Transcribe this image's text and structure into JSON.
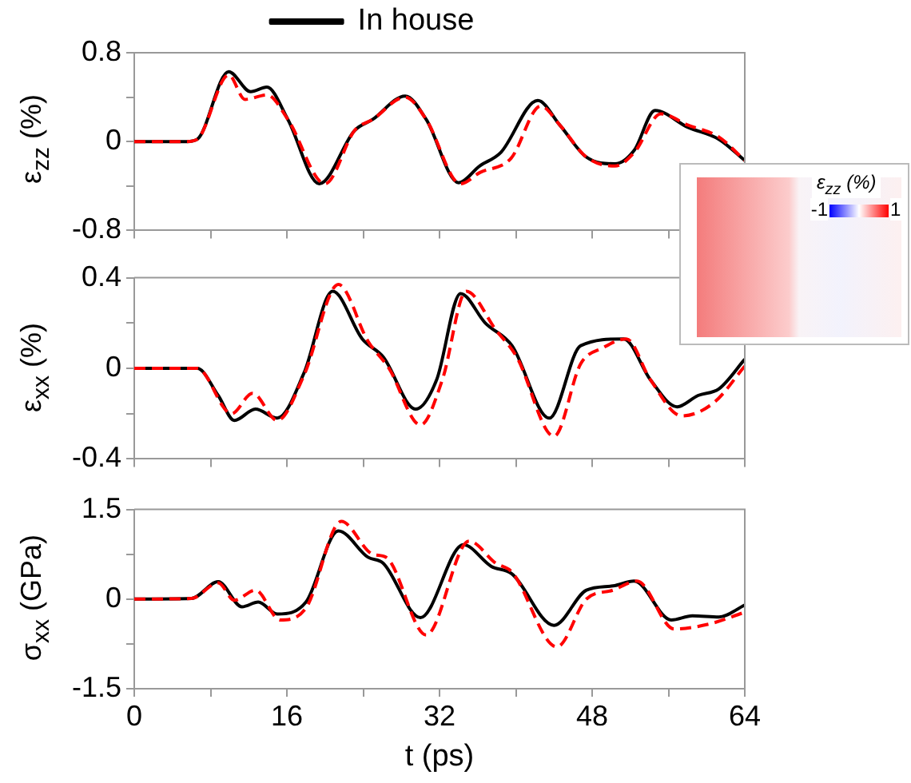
{
  "chart_data": [
    {
      "type": "line",
      "ylabel": "ε$_{zz}$ (%)",
      "xlim": [
        0,
        64
      ],
      "xticks": [
        0,
        {
          "value": 8,
          "label": null
        },
        16,
        {
          "value": 24,
          "label": null
        },
        32,
        {
          "value": 40,
          "label": null
        },
        48,
        {
          "value": 56,
          "label": null
        },
        64
      ],
      "ylim": [
        -0.8,
        0.8
      ],
      "yticks": [
        -0.8,
        {
          "value": -0.4,
          "label": null
        },
        0,
        {
          "value": 0.4,
          "label": null
        },
        0.8
      ],
      "tick_labels": "y",
      "legend": "top",
      "line_style": "solid",
      "series": [
        {
          "color": "#ff0000",
          "line_style": "dashed",
          "x": [
            0,
            5.5,
            6.6,
            9.9,
            11.6,
            13.9,
            16.1,
            20,
            23.1,
            25,
            28.4,
            30.6,
            34.2,
            36.2,
            39.5,
            42.6,
            44.6,
            47.4,
            50.4,
            52.4,
            55.2,
            58,
            61.3,
            64
          ],
          "values": [
            0,
            0,
            0.02,
            0.6,
            0.38,
            0.42,
            0.2,
            -0.38,
            0.1,
            0.2,
            0.4,
            0.2,
            -0.38,
            -0.28,
            -0.15,
            0.32,
            0.15,
            -0.14,
            -0.22,
            -0.1,
            0.25,
            0.15,
            0.04,
            -0.17
          ]
        },
        {
          "name": "In house",
          "color": "#000000",
          "x": [
            0,
            5.5,
            6.6,
            9.9,
            12.2,
            13.9,
            16.1,
            19.4,
            23.1,
            25,
            28.4,
            30.6,
            34,
            36.2,
            38.4,
            42.3,
            44.6,
            47.4,
            50.4,
            52.4,
            54.6,
            58,
            61.3,
            64
          ],
          "values": [
            0,
            0,
            0.02,
            0.63,
            0.45,
            0.49,
            0.2,
            -0.38,
            0.1,
            0.2,
            0.41,
            0.2,
            -0.37,
            -0.22,
            -0.1,
            0.37,
            0.15,
            -0.14,
            -0.2,
            -0.08,
            0.28,
            0.13,
            0.02,
            -0.17
          ]
        }
      ]
    },
    {
      "type": "line",
      "ylabel": "ε$_{xx}$ (%)",
      "xlim": [
        0,
        64
      ],
      "xticks": [
        0,
        {
          "value": 8,
          "label": null
        },
        16,
        {
          "value": 24,
          "label": null
        },
        32,
        {
          "value": 40,
          "label": null
        },
        48,
        {
          "value": 56,
          "label": null
        },
        64
      ],
      "ylim": [
        -0.4,
        0.4
      ],
      "yticks": [
        -0.4,
        {
          "value": -0.2,
          "label": null
        },
        0,
        {
          "value": 0.2,
          "label": null
        },
        0.4
      ],
      "tick_labels": "y",
      "line_style": "solid",
      "series": [
        {
          "color": "#ff0000",
          "line_style": "dashed",
          "x": [
            0,
            6.6,
            10.2,
            12.4,
            15,
            17.8,
            21.4,
            24.5,
            26.7,
            30,
            32.3,
            34.8,
            37.9,
            40.1,
            44,
            46.8,
            49.1,
            51.6,
            54.1,
            57.4,
            60.8,
            64
          ],
          "values": [
            0,
            0,
            -0.2,
            -0.11,
            -0.23,
            -0.03,
            0.37,
            0.12,
            0,
            -0.25,
            -0.05,
            0.34,
            0.17,
            0.05,
            -0.3,
            0.02,
            0.09,
            0.13,
            -0.05,
            -0.21,
            -0.15,
            0.01
          ]
        },
        {
          "color": "#000000",
          "x": [
            0,
            6.6,
            8.8,
            10.5,
            12.7,
            15,
            17.8,
            20.8,
            23.9,
            26.1,
            29.5,
            31.7,
            34.2,
            36.8,
            39.6,
            43.5,
            46.8,
            51.3,
            54.1,
            56.9,
            59.1,
            61.3,
            64
          ],
          "values": [
            0,
            0,
            -0.12,
            -0.23,
            -0.18,
            -0.22,
            -0.02,
            0.34,
            0.13,
            0.05,
            -0.18,
            -0.05,
            0.33,
            0.2,
            0.1,
            -0.22,
            0.1,
            0.13,
            -0.05,
            -0.17,
            -0.12,
            -0.09,
            0.04
          ]
        }
      ]
    },
    {
      "type": "line",
      "ylabel": "σ$_{xx}$ (GPa)",
      "xlabel": "t (ps)",
      "xlim": [
        0,
        64
      ],
      "xticks": [
        0,
        {
          "value": 8,
          "label": null
        },
        16,
        {
          "value": 24,
          "label": null
        },
        32,
        {
          "value": 40,
          "label": null
        },
        48,
        {
          "value": 56,
          "label": null
        },
        64
      ],
      "ylim": [
        -1.5,
        1.5
      ],
      "yticks": [
        -1.5,
        {
          "value": -0.75,
          "label": null
        },
        0,
        {
          "value": 0.75,
          "label": null
        },
        1.5
      ],
      "line_style": "solid",
      "series": [
        {
          "color": "#ff0000",
          "line_style": "dashed",
          "x": [
            0,
            6,
            8.8,
            10.5,
            12.7,
            15.3,
            18,
            21.7,
            25,
            26.4,
            30.6,
            35.1,
            37.9,
            39.6,
            44.3,
            47.4,
            50.2,
            52.7,
            56.6,
            60.2,
            64
          ],
          "values": [
            0,
            0.01,
            0.27,
            -0.02,
            0.15,
            -0.35,
            -0.15,
            1.3,
            0.75,
            0.7,
            -0.6,
            0.97,
            0.6,
            0.45,
            -0.8,
            0,
            0.15,
            0.3,
            -0.5,
            -0.42,
            -0.22
          ]
        },
        {
          "color": "#000000",
          "x": [
            0,
            6,
            8.8,
            11.3,
            13,
            15,
            18,
            21.4,
            24.5,
            26.1,
            30,
            34.5,
            37.4,
            39.6,
            44,
            47.4,
            50.2,
            52.4,
            56.3,
            58.5,
            61.3,
            64
          ],
          "values": [
            0,
            0.01,
            0.29,
            -0.13,
            -0.05,
            -0.25,
            -0.05,
            1.14,
            0.7,
            0.6,
            -0.31,
            0.91,
            0.55,
            0.42,
            -0.44,
            0.15,
            0.22,
            0.3,
            -0.35,
            -0.28,
            -0.3,
            -0.1
          ]
        }
      ]
    },
    {
      "type": "other",
      "clabel": "ε$_{zz}$ (%)",
      "annotations": [
        "-1",
        "1"
      ]
    }
  ]
}
